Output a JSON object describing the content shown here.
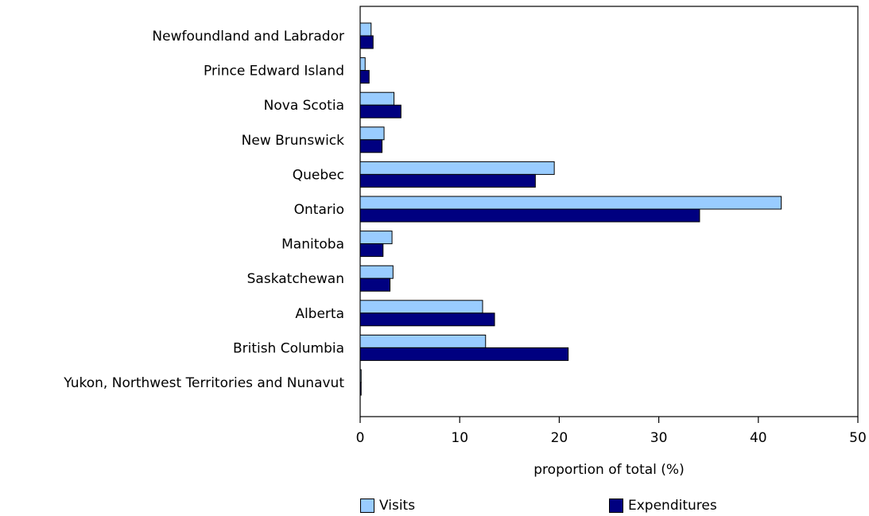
{
  "chart_data": {
    "type": "bar",
    "orientation": "horizontal",
    "categories": [
      "Newfoundland and Labrador",
      "Prince Edward Island",
      "Nova Scotia",
      "New Brunswick",
      "Quebec",
      "Ontario",
      "Manitoba",
      "Saskatchewan",
      "Alberta",
      "British Columbia",
      "Yukon, Northwest Territories and Nunavut"
    ],
    "series": [
      {
        "name": "Visits",
        "color": "#99ccff",
        "values": [
          1.1,
          0.5,
          3.4,
          2.4,
          19.5,
          42.3,
          3.2,
          3.3,
          12.3,
          12.6,
          0.1
        ]
      },
      {
        "name": "Expenditures",
        "color": "#000080",
        "values": [
          1.3,
          0.9,
          4.1,
          2.2,
          17.6,
          34.1,
          2.3,
          3.0,
          13.5,
          20.9,
          0.1
        ]
      }
    ],
    "xlabel": "proportion of total (%)",
    "xlim": [
      0,
      50
    ],
    "xticks": [
      0,
      10,
      20,
      30,
      40,
      50
    ],
    "grid": false,
    "legend_position": "bottom"
  }
}
